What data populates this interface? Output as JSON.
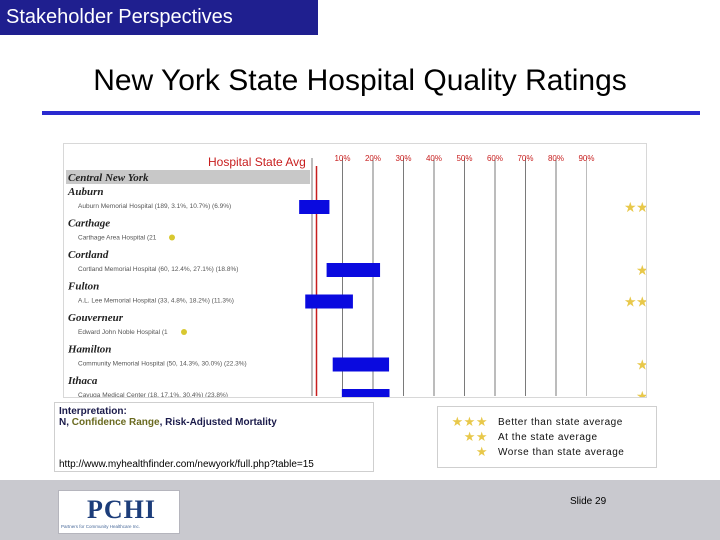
{
  "banner": {
    "text": "Stakeholder Perspectives"
  },
  "title": {
    "text": "New York State Hospital Quality Ratings"
  },
  "chart": {
    "header_label": "Hospital State Avg",
    "tick_labels": [
      "10%",
      "20%",
      "30%",
      "40%",
      "50%",
      "60%",
      "70%",
      "80%",
      "90%"
    ],
    "region": "Central New York",
    "state_avg_pct": 10,
    "rows": [
      {
        "city": "Auburn",
        "hospital": "Auburn Memorial Hospital (189, 3.1%, 10.7%) (6.9%)",
        "lo": 3,
        "hi": 10,
        "stars": 2
      },
      {
        "city": "Carthage",
        "hospital": "Carthage Area Hospital (21",
        "lo": null,
        "hi": null,
        "stars": 0
      },
      {
        "city": "Cortland",
        "hospital": "Cortland Memorial Hospital (60, 12.4%, 27.1%) (18.8%)",
        "lo": 12,
        "hi": 27,
        "stars": 1
      },
      {
        "city": "Fulton",
        "hospital": "A.L. Lee Memorial Hospital (33, 4.8%, 18.2%) (11.3%)",
        "lo": 5,
        "hi": 18,
        "stars": 2
      },
      {
        "city": "Gouverneur",
        "hospital": "Edward John Noble Hospital (1",
        "lo": null,
        "hi": null,
        "stars": 0
      },
      {
        "city": "Hamilton",
        "hospital": "Community Memorial Hospital (50, 14.3%, 30.0%) (22.3%)",
        "lo": 14,
        "hi": 30,
        "stars": 1
      },
      {
        "city": "Ithaca",
        "hospital": "Cayuga Medical Center (18, 17.1%, 30.4%) (23.8%)",
        "lo": 17,
        "hi": 30,
        "stars": 1
      }
    ]
  },
  "interpretation": {
    "heading": "Interpretation:",
    "n": "N,",
    "confidence": "Confidence Range",
    "risk": ", Risk-Adjusted Mortality",
    "url": "http://www.myhealthfinder.com/newyork/full.php?table=15"
  },
  "legend": [
    {
      "stars": "★★★",
      "text": "Better than state average"
    },
    {
      "stars": "★★",
      "text": "At the state average"
    },
    {
      "stars": "★",
      "text": "Worse than state average"
    }
  ],
  "footer": {
    "logo_text": "PCHI",
    "logo_sub": "Partners for Community Healthcare Inc.",
    "slide_number": "Slide 29"
  },
  "colors": {
    "banner": "#1f1f8f",
    "rule": "#2a2ad0",
    "bar": "#0a0adf",
    "state_line": "#c81e1e",
    "star": "#e8c84a",
    "footer": "#c9c9cf"
  }
}
